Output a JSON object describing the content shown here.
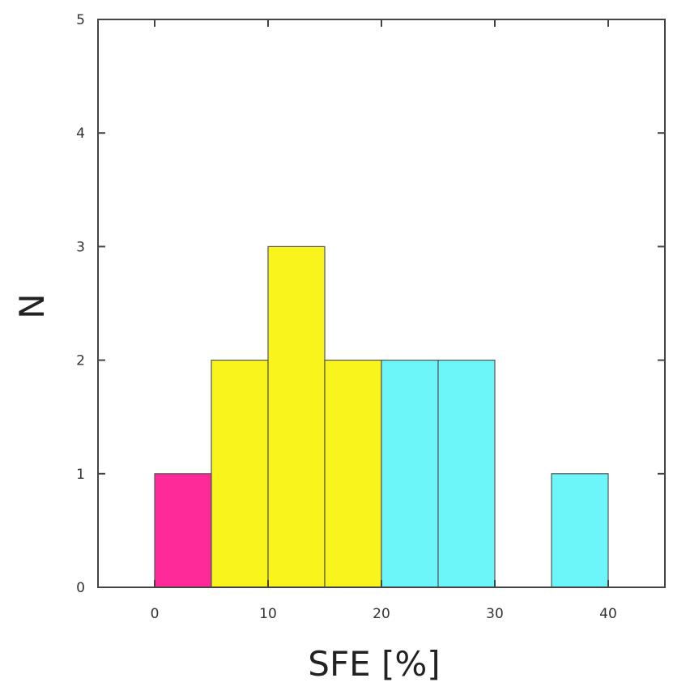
{
  "chart_data": {
    "type": "bar",
    "title": "",
    "xlabel": "SFE [%]",
    "ylabel": "N",
    "xlim": [
      -5,
      45
    ],
    "ylim": [
      0,
      5
    ],
    "xticks": [
      0,
      10,
      20,
      30,
      40
    ],
    "yticks": [
      0,
      1,
      2,
      3,
      4,
      5
    ],
    "grid": false,
    "bin_width": 5,
    "series": [
      {
        "color": "#ff2a9a",
        "bins": [
          {
            "x0": 0,
            "x1": 5,
            "count": 1
          },
          {
            "x0": 5,
            "x1": 10,
            "count": 1
          }
        ]
      },
      {
        "color": "#f8f41c",
        "bins": [
          {
            "x0": 5,
            "x1": 10,
            "count": 2
          },
          {
            "x0": 10,
            "x1": 15,
            "count": 3
          },
          {
            "x0": 15,
            "x1": 20,
            "count": 2
          }
        ]
      },
      {
        "color": "#6cf6fa",
        "bins": [
          {
            "x0": 20,
            "x1": 25,
            "count": 2
          },
          {
            "x0": 25,
            "x1": 30,
            "count": 2
          },
          {
            "x0": 35,
            "x1": 40,
            "count": 1
          }
        ]
      }
    ]
  }
}
